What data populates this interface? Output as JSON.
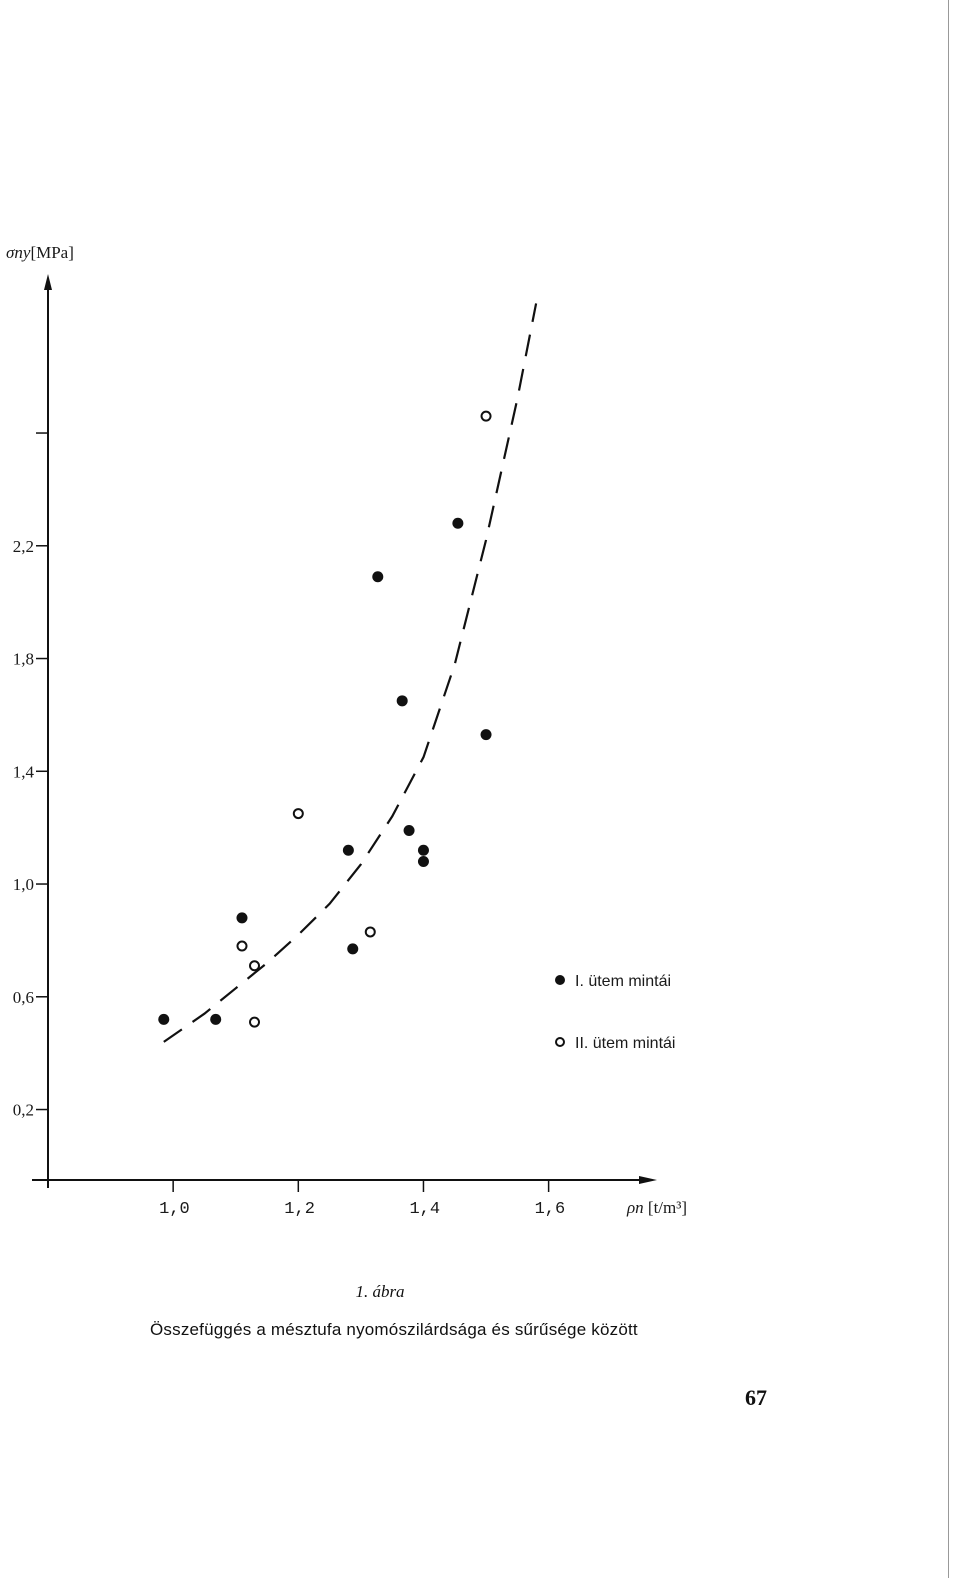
{
  "figure": {
    "caption_title": "1. ábra",
    "caption_text": "Összefüggés a mésztufa nyomószilárdsága és sűrűsége között",
    "page_number": "67"
  },
  "chart_data": {
    "type": "scatter",
    "ylabel_symbol": "σny",
    "ylabel_unit": "[MPa]",
    "xlabel_symbol": "ρn",
    "xlabel_unit": "[t/m³]",
    "x_ticks": [
      {
        "value": 1.0,
        "label": "1,0"
      },
      {
        "value": 1.2,
        "label": "1,2"
      },
      {
        "value": 1.4,
        "label": "1,4"
      },
      {
        "value": 1.6,
        "label": "1,6"
      }
    ],
    "y_ticks": [
      {
        "value": 0.2,
        "label": "0,2"
      },
      {
        "value": 0.6,
        "label": "0,6"
      },
      {
        "value": 1.0,
        "label": "1,0"
      },
      {
        "value": 1.4,
        "label": "1,4"
      },
      {
        "value": 1.8,
        "label": "1,8"
      },
      {
        "value": 2.2,
        "label": "2,2"
      },
      {
        "value": 2.6,
        "label": ""
      }
    ],
    "xlim": [
      0.8,
      1.77
    ],
    "ylim": [
      -0.05,
      3.15
    ],
    "grid": false,
    "legend_position": "bottom-right",
    "series": [
      {
        "name": "I. ütem mintái",
        "marker": "filled-circle",
        "color": "#111111",
        "points": [
          {
            "x": 0.985,
            "y": 0.52
          },
          {
            "x": 1.068,
            "y": 0.52
          },
          {
            "x": 1.11,
            "y": 0.88
          },
          {
            "x": 1.28,
            "y": 1.12
          },
          {
            "x": 1.287,
            "y": 0.77
          },
          {
            "x": 1.327,
            "y": 2.09
          },
          {
            "x": 1.366,
            "y": 1.65
          },
          {
            "x": 1.377,
            "y": 1.19
          },
          {
            "x": 1.4,
            "y": 1.12
          },
          {
            "x": 1.4,
            "y": 1.08
          },
          {
            "x": 1.455,
            "y": 2.28
          },
          {
            "x": 1.5,
            "y": 1.53
          }
        ]
      },
      {
        "name": "II. ütem mintái",
        "marker": "open-circle",
        "color": "#111111",
        "points": [
          {
            "x": 1.11,
            "y": 0.78
          },
          {
            "x": 1.13,
            "y": 0.71
          },
          {
            "x": 1.13,
            "y": 0.51
          },
          {
            "x": 1.2,
            "y": 1.25
          },
          {
            "x": 1.315,
            "y": 0.83
          },
          {
            "x": 1.5,
            "y": 2.66
          }
        ]
      }
    ],
    "trend_line": {
      "style": "dashed",
      "color": "#111111",
      "points": [
        {
          "x": 0.985,
          "y": 0.44
        },
        {
          "x": 1.05,
          "y": 0.54
        },
        {
          "x": 1.1,
          "y": 0.63
        },
        {
          "x": 1.15,
          "y": 0.72
        },
        {
          "x": 1.2,
          "y": 0.82
        },
        {
          "x": 1.25,
          "y": 0.93
        },
        {
          "x": 1.3,
          "y": 1.07
        },
        {
          "x": 1.35,
          "y": 1.24
        },
        {
          "x": 1.4,
          "y": 1.45
        },
        {
          "x": 1.45,
          "y": 1.78
        },
        {
          "x": 1.5,
          "y": 2.22
        },
        {
          "x": 1.55,
          "y": 2.72
        },
        {
          "x": 1.58,
          "y": 3.06
        }
      ]
    }
  }
}
